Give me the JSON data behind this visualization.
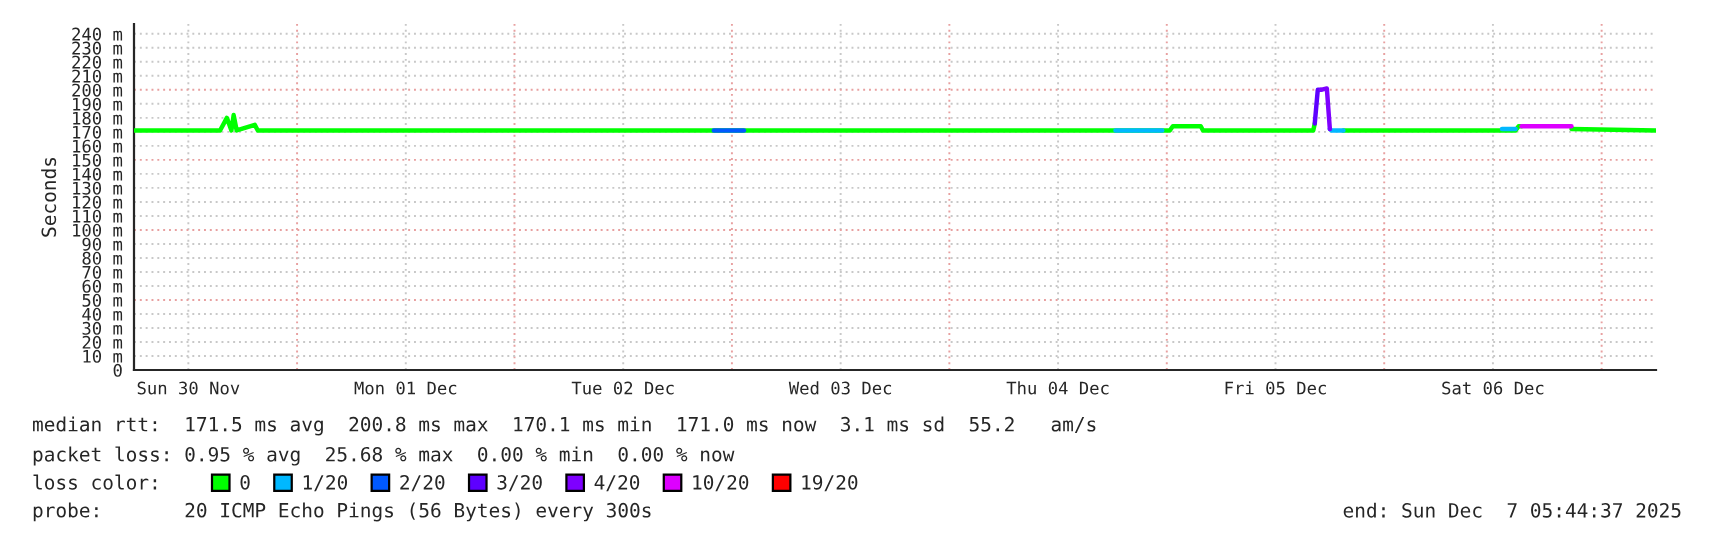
{
  "chart_data": {
    "type": "line",
    "ylabel": "Seconds",
    "legend_title": "loss color:",
    "legend": "bottom",
    "grid": true,
    "xlim": [
      "2025-11-30T06:00",
      "2025-12-07T06:00"
    ],
    "ylim": [
      0,
      247
    ],
    "xticks": [
      {
        "value": "2025-11-30T12:00",
        "label": "Sun 30 Nov"
      },
      {
        "value": "2025-12-01T00:00",
        "label": null
      },
      {
        "value": "2025-12-01T12:00",
        "label": "Mon 01 Dec"
      },
      {
        "value": "2025-12-02T00:00",
        "label": null
      },
      {
        "value": "2025-12-02T12:00",
        "label": "Tue 02 Dec"
      },
      {
        "value": "2025-12-03T00:00",
        "label": null
      },
      {
        "value": "2025-12-03T12:00",
        "label": "Wed 03 Dec"
      },
      {
        "value": "2025-12-04T00:00",
        "label": null
      },
      {
        "value": "2025-12-04T12:00",
        "label": "Thu 04 Dec"
      },
      {
        "value": "2025-12-05T00:00",
        "label": null
      },
      {
        "value": "2025-12-05T12:00",
        "label": "Fri 05 Dec"
      },
      {
        "value": "2025-12-06T00:00",
        "label": null
      },
      {
        "value": "2025-12-06T12:00",
        "label": "Sat 06 Dec"
      },
      {
        "value": "2025-12-07T00:00",
        "label": null
      }
    ],
    "yticks": [
      0,
      {
        "value": 10,
        "label": "10 m"
      },
      {
        "value": 20,
        "label": "20 m"
      },
      {
        "value": 30,
        "label": "30 m"
      },
      {
        "value": 40,
        "label": "40 m"
      },
      {
        "value": 50,
        "label": "50 m"
      },
      {
        "value": 60,
        "label": "60 m"
      },
      {
        "value": 70,
        "label": "70 m"
      },
      {
        "value": 80,
        "label": "80 m"
      },
      {
        "value": 90,
        "label": "90 m"
      },
      {
        "value": 100,
        "label": "100 m"
      },
      {
        "value": 110,
        "label": "110 m"
      },
      {
        "value": 120,
        "label": "120 m"
      },
      {
        "value": 130,
        "label": "130 m"
      },
      {
        "value": 140,
        "label": "140 m"
      },
      {
        "value": 150,
        "label": "150 m"
      },
      {
        "value": 160,
        "label": "160 m"
      },
      {
        "value": 170,
        "label": "170 m"
      },
      {
        "value": 180,
        "label": "180 m"
      },
      {
        "value": 190,
        "label": "190 m"
      },
      {
        "value": 200,
        "label": "200 m"
      },
      {
        "value": 210,
        "label": "210 m"
      },
      {
        "value": 220,
        "label": "220 m"
      },
      {
        "value": 230,
        "label": "230 m"
      },
      {
        "value": 240,
        "label": "240 m"
      }
    ],
    "series": [
      {
        "name": "0",
        "color": "#00ff00",
        "x": [
          "2025-11-30T06:00",
          "2025-11-30T15:30",
          "2025-11-30T16:15",
          "2025-11-30T16:45",
          "2025-11-30T17:00",
          "2025-11-30T17:20",
          "2025-11-30T19:20",
          "2025-11-30T19:40",
          "2025-12-05T00:20",
          "2025-12-05T00:40",
          "2025-12-05T03:45",
          "2025-12-05T04:00",
          "2025-12-05T16:10",
          "2025-12-05T16:20",
          "2025-12-05T16:30",
          "2025-12-05T19:30",
          "2025-12-06T14:30",
          "2025-12-06T14:50",
          "2025-12-06T15:10",
          "2025-12-06T17:00",
          "2025-12-06T20:40",
          "2025-12-07T06:00"
        ],
        "values": [
          171,
          171,
          180,
          171,
          182,
          171,
          175,
          171,
          171,
          174,
          174,
          171,
          171,
          176,
          null,
          171,
          171,
          174,
          174,
          null,
          172,
          171
        ]
      },
      {
        "name": "1/20",
        "color": "#00b8ff",
        "x": [
          "2025-12-04T18:20",
          "2025-12-04T23:30",
          "2025-12-05T00:00",
          "2025-12-05T18:00",
          "2025-12-05T18:10",
          "2025-12-05T19:30",
          "2025-12-05T20:00",
          "2025-12-06T13:00",
          "2025-12-06T14:30"
        ],
        "values": [
          171,
          171,
          null,
          172,
          171,
          171,
          null,
          172,
          172
        ]
      },
      {
        "name": "2/20",
        "color": "#0059ff",
        "x": [
          "2025-12-02T22:00",
          "2025-12-03T01:20"
        ],
        "values": [
          171,
          171
        ]
      },
      {
        "name": "3/20",
        "color": "#5e00ff",
        "x": [
          "2025-12-05T16:20",
          "2025-12-05T16:40",
          "2025-12-05T17:00"
        ],
        "values": [
          176,
          200,
          200
        ]
      },
      {
        "name": "4/20",
        "color": "#7e00ff",
        "x": [
          "2025-12-05T17:00",
          "2025-12-05T17:40",
          "2025-12-05T18:00"
        ],
        "values": [
          200,
          201,
          172
        ]
      },
      {
        "name": "10/20",
        "color": "#dd00ff",
        "x": [
          "2025-12-06T15:10",
          "2025-12-06T20:40"
        ],
        "values": [
          174,
          174
        ]
      },
      {
        "name": "19/20",
        "color": "#ff0000"
      }
    ],
    "annotations": [
      "median rtt:  171.5 ms avg  200.8 ms max  170.1 ms min  171.0 ms now  3.1 ms sd  55.2   am/s",
      "packet loss: 0.95 % avg  25.68 % max  0.00 % min  0.00 % now",
      "probe:       20 ICMP Echo Pings (56 Bytes) every 300s",
      "end: Sun Dec  7 05:44:37 2025"
    ]
  }
}
